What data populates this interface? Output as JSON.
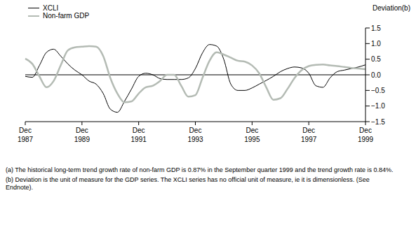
{
  "chart_data": {
    "type": "line",
    "y_label": "Deviation(b)",
    "categories": [
      "Dec 1987",
      null,
      null,
      null,
      null,
      null,
      null,
      null,
      "Dec 1989",
      null,
      null,
      null,
      null,
      null,
      null,
      null,
      "Dec 1991",
      null,
      null,
      null,
      null,
      null,
      null,
      null,
      "Dec 1993",
      null,
      null,
      null,
      null,
      null,
      null,
      null,
      "Dec 1995",
      null,
      null,
      null,
      null,
      null,
      null,
      null,
      "Dec 1997",
      null,
      null,
      null,
      null,
      null,
      null,
      null,
      "Dec 1999"
    ],
    "series": [
      {
        "name": "XCLI",
        "color": "#000000",
        "values": [
          -0.05,
          -0.08,
          0.3,
          0.72,
          0.82,
          0.6,
          0.35,
          0.15,
          0.0,
          -0.2,
          -0.3,
          -0.6,
          -1.1,
          -1.2,
          -0.85,
          -0.45,
          -0.05,
          0.05,
          0.0,
          -0.12,
          -0.15,
          -0.15,
          -0.15,
          -0.1,
          0.2,
          0.7,
          0.97,
          0.92,
          0.5,
          -0.3,
          -0.5,
          -0.5,
          -0.42,
          -0.3,
          -0.18,
          -0.05,
          0.1,
          0.2,
          0.25,
          0.22,
          0.05,
          -0.35,
          -0.4,
          -0.1,
          0.1,
          0.15,
          0.2,
          0.25,
          0.32
        ]
      },
      {
        "name": "Non-farm GDP",
        "color": "#b4bbb4",
        "values": [
          0.52,
          0.35,
          -0.05,
          -0.4,
          -0.2,
          0.3,
          0.78,
          0.88,
          0.9,
          0.92,
          0.9,
          0.6,
          -0.1,
          -0.6,
          -0.88,
          -0.85,
          -0.6,
          -0.4,
          -0.35,
          -0.2,
          0.0,
          0.0,
          -0.35,
          -0.7,
          -0.65,
          -0.1,
          0.45,
          0.72,
          0.65,
          0.55,
          0.45,
          0.42,
          0.3,
          0.05,
          -0.4,
          -0.8,
          -0.75,
          -0.45,
          -0.1,
          0.15,
          0.28,
          0.32,
          0.33,
          0.3,
          0.28,
          0.25,
          0.22,
          0.2,
          0.18
        ]
      }
    ],
    "ylim": [
      -1.5,
      1.5
    ],
    "yticks": [
      {
        "value": -1.5,
        "label": "−1.5"
      },
      {
        "value": -1.0,
        "label": "−1.0"
      },
      {
        "value": -0.5,
        "label": "−0.5"
      },
      {
        "value": 0,
        "label": "0.0"
      },
      {
        "value": 0.5,
        "label": "0.5"
      },
      {
        "value": 1.0,
        "label": "1.0"
      },
      1.5
    ],
    "notes": [
      "(a) The historical long-term trend growth rate of non-farm GDP is 0.87% in the September quarter 1999 and the trend growth rate is 0.84%.",
      "(b) Deviation is the unit of measure for the GDP series. The XCLI series has no official unit of measure, ie it is dimensionless. (See Endnote)."
    ],
    "legend": "top-left",
    "grid": false
  }
}
